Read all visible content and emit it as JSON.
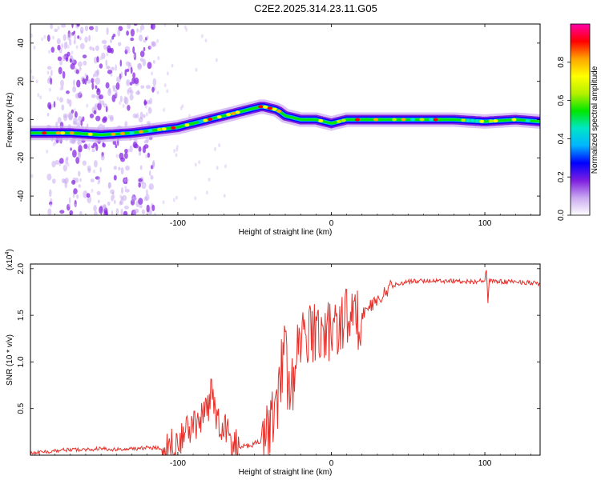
{
  "figure": {
    "title": "C2E2.2025.314.23.11.G05"
  },
  "chart_data": [
    {
      "type": "heatmap",
      "xlabel": "Height of straight line (km)",
      "ylabel": "Frequency (Hz)",
      "xlim": [
        -196,
        136
      ],
      "ylim": [
        -50,
        50
      ],
      "xticks": [
        -100,
        0,
        100
      ],
      "yticks": [
        -40,
        -20,
        0,
        20,
        40
      ],
      "colorbar": {
        "label": "Normalized spectral amplitude",
        "range": [
          0,
          1
        ],
        "ticks": [
          0.0,
          0.2,
          0.4,
          0.6,
          0.8
        ],
        "colors": [
          "#ffffff",
          "#c9a9f0",
          "#7d1ee0",
          "#0000ff",
          "#00b4ff",
          "#00e6c8",
          "#00e600",
          "#b4f000",
          "#ffff00",
          "#ffa500",
          "#ff0000",
          "#ff00aa"
        ]
      },
      "ridge": {
        "x": [
          -196,
          -170,
          -150,
          -130,
          -120,
          -100,
          -80,
          -60,
          -50,
          -45,
          -40,
          -35,
          -30,
          -25,
          -20,
          -15,
          -10,
          -5,
          0,
          5,
          10,
          20,
          40,
          60,
          80,
          100,
          120,
          136
        ],
        "y": [
          -7,
          -7,
          -8,
          -7,
          -6,
          -4,
          0,
          4,
          6,
          7,
          6,
          5,
          2,
          1,
          0,
          0,
          0,
          -1,
          -2,
          -1,
          0,
          0,
          0,
          0,
          0,
          -1,
          0,
          -1
        ]
      },
      "scatter_region": {
        "x_range": [
          -185,
          -115
        ],
        "y_range": [
          -50,
          50
        ]
      }
    },
    {
      "type": "line",
      "xlabel": "Height of straight line (km)",
      "ylabel": "SNR (10 * v/v)",
      "scale_note": "(x10",
      "scale_exp": "4",
      "xlim": [
        -196,
        136
      ],
      "ylim": [
        0,
        2.05
      ],
      "xticks": [
        -100,
        0,
        100
      ],
      "yticks": [
        0.5,
        1.0,
        1.5,
        2.0
      ],
      "ytick_labels": [
        "0.5",
        "1.0",
        "1.5",
        "2.0"
      ],
      "series": [
        {
          "color": "#e8302a",
          "x": [
            -196,
            -180,
            -170,
            -160,
            -150,
            -140,
            -130,
            -120,
            -110,
            -105,
            -100,
            -95,
            -90,
            -85,
            -80,
            -78,
            -75,
            -72,
            -70,
            -65,
            -60,
            -55,
            -50,
            -45,
            -40,
            -35,
            -32,
            -30,
            -28,
            -25,
            -22,
            -20,
            -15,
            -10,
            -5,
            0,
            5,
            10,
            15,
            20,
            25,
            30,
            35,
            40,
            50,
            60,
            70,
            80,
            90,
            100,
            101,
            102,
            103,
            105,
            110,
            120,
            130,
            136
          ],
          "y": [
            0.02,
            0.05,
            0.06,
            0.06,
            0.07,
            0.06,
            0.07,
            0.08,
            0.08,
            0.12,
            0.15,
            0.25,
            0.32,
            0.38,
            0.5,
            0.7,
            0.4,
            0.35,
            0.3,
            0.15,
            0.08,
            0.1,
            0.12,
            0.18,
            0.35,
            0.6,
            1.0,
            1.3,
            0.6,
            0.8,
            1.1,
            1.2,
            1.3,
            1.35,
            1.3,
            1.35,
            1.4,
            1.5,
            1.45,
            1.5,
            1.6,
            1.65,
            1.75,
            1.82,
            1.86,
            1.87,
            1.87,
            1.87,
            1.86,
            1.87,
            2.0,
            1.62,
            1.88,
            1.87,
            1.86,
            1.86,
            1.85,
            1.83
          ]
        }
      ]
    }
  ]
}
